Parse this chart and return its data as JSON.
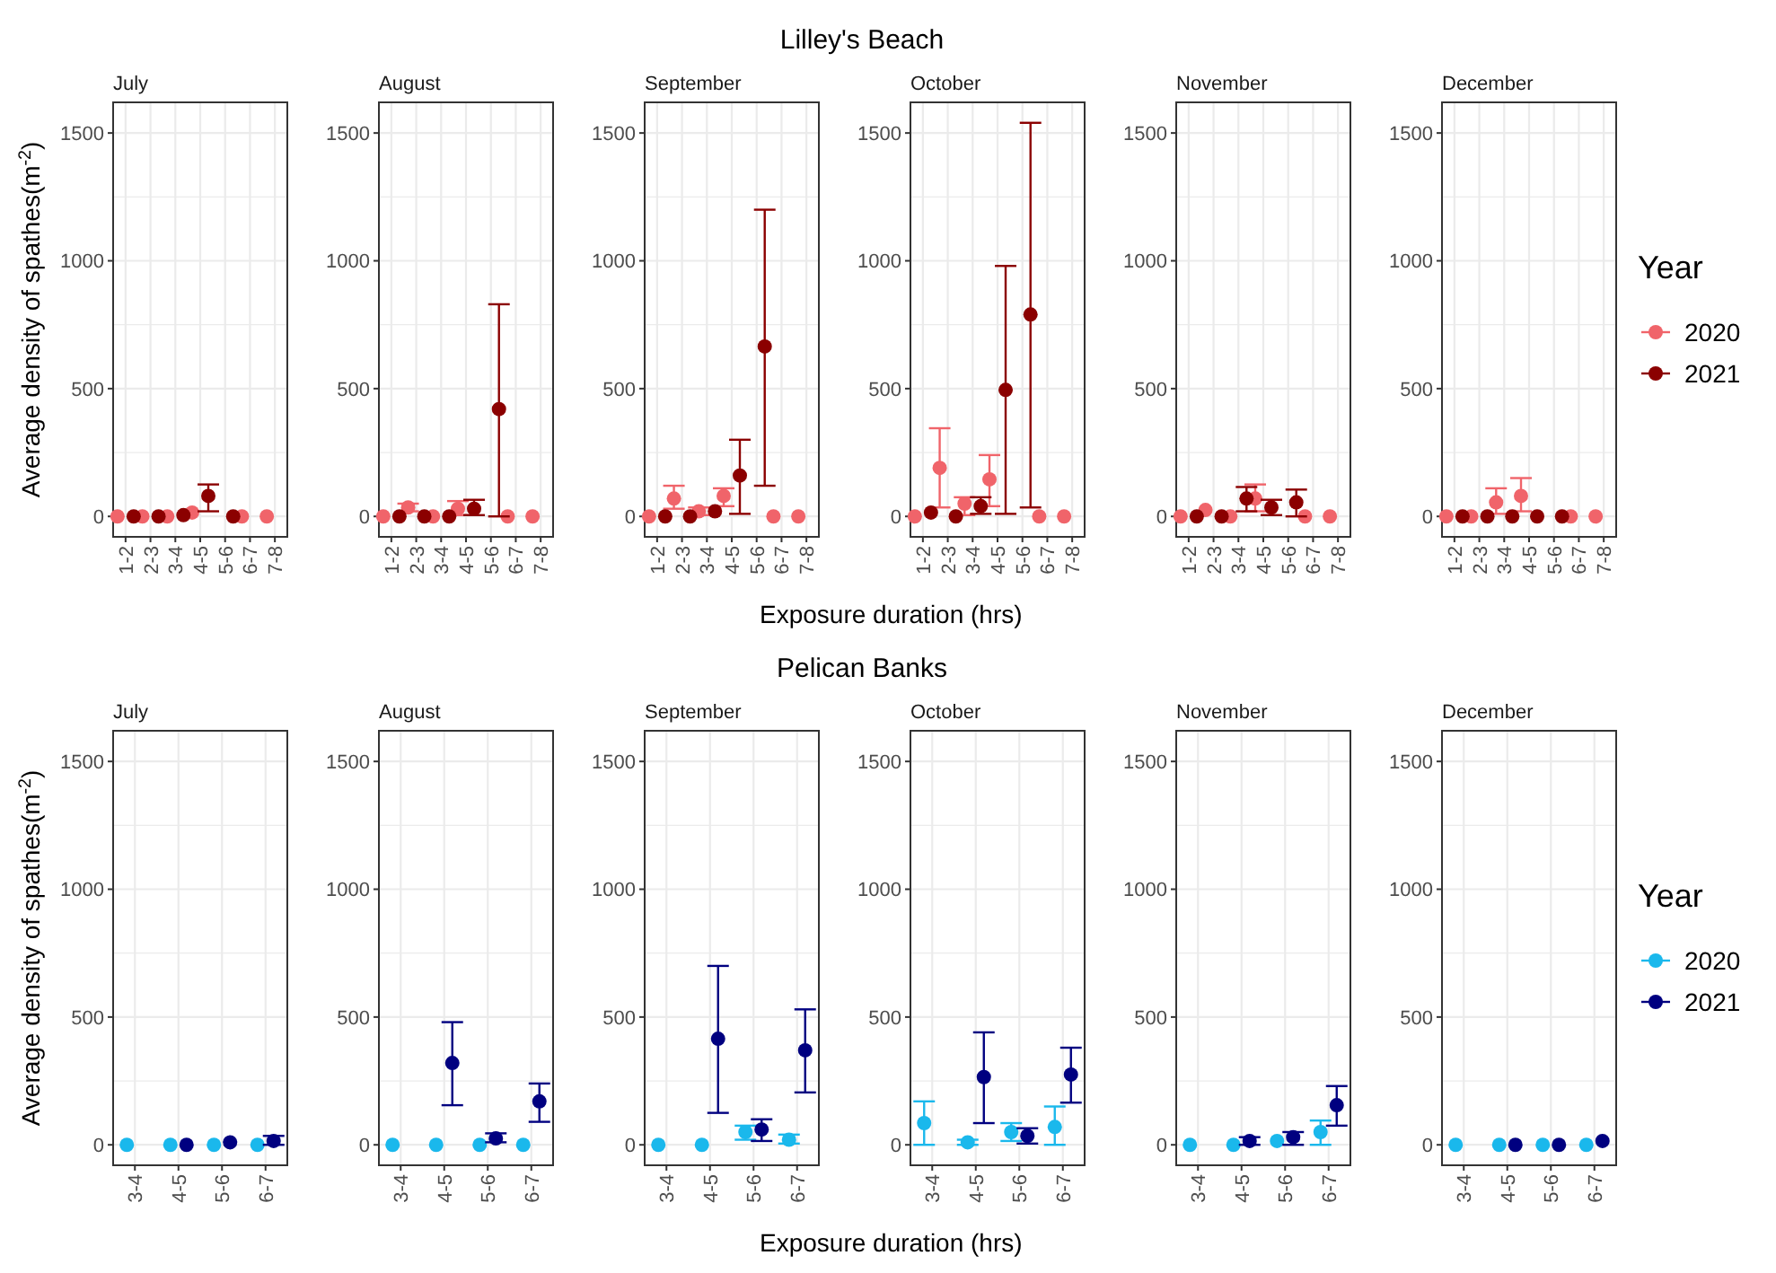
{
  "chart_data": [
    {
      "type": "scatter",
      "title": "July",
      "annotations": [
        "Lilley's Beach"
      ],
      "ylabel": "Average density of spathes(m$^{-2}$)",
      "categories": [
        "1-2",
        "2-3",
        "3-4",
        "4-5",
        "5-6",
        "6-7",
        "7-8"
      ],
      "ylim": [
        -80,
        1620
      ],
      "yticks": [
        0,
        {
          "value": 250,
          "label": null
        },
        500,
        {
          "value": 750,
          "label": null
        },
        1000,
        {
          "value": 1250,
          "label": null
        },
        1500
      ],
      "grid": true,
      "marker": "circle",
      "legend": false,
      "series": [
        {
          "color": "#f0646a",
          "values": [
            0,
            0,
            0,
            15,
            null,
            0,
            0
          ]
        },
        {
          "color": "#8b0000",
          "values": [
            0,
            0,
            5,
            80,
            0,
            null,
            null
          ],
          "errors": [
            null,
            null,
            null,
            [
              20,
              125
            ],
            null,
            null,
            null
          ]
        }
      ]
    },
    {
      "type": "scatter",
      "title": "August",
      "categories": [
        "1-2",
        "2-3",
        "3-4",
        "4-5",
        "5-6",
        "6-7",
        "7-8"
      ],
      "ylim": [
        -80,
        1620
      ],
      "yticks": [
        0,
        {
          "value": 250,
          "label": null
        },
        500,
        {
          "value": 750,
          "label": null
        },
        1000,
        {
          "value": 1250,
          "label": null
        },
        1500
      ],
      "grid": true,
      "marker": "circle",
      "legend": false,
      "series": [
        {
          "color": "#f0646a",
          "values": [
            0,
            35,
            0,
            30,
            null,
            0,
            0
          ],
          "errors": [
            null,
            [
              20,
              50
            ],
            null,
            [
              5,
              60
            ],
            null,
            null,
            null
          ]
        },
        {
          "color": "#8b0000",
          "values": [
            0,
            0,
            0,
            30,
            420,
            null,
            null
          ],
          "errors": [
            null,
            null,
            null,
            [
              5,
              65
            ],
            [
              0,
              830
            ],
            null,
            null
          ]
        }
      ]
    },
    {
      "type": "scatter",
      "title": "September",
      "categories": [
        "1-2",
        "2-3",
        "3-4",
        "4-5",
        "5-6",
        "6-7",
        "7-8"
      ],
      "ylim": [
        -80,
        1620
      ],
      "yticks": [
        0,
        {
          "value": 250,
          "label": null
        },
        500,
        {
          "value": 750,
          "label": null
        },
        1000,
        {
          "value": 1250,
          "label": null
        },
        1500
      ],
      "grid": true,
      "marker": "circle",
      "legend": false,
      "series": [
        {
          "color": "#f0646a",
          "values": [
            0,
            70,
            20,
            80,
            null,
            0,
            0
          ],
          "errors": [
            null,
            [
              30,
              120
            ],
            [
              5,
              35
            ],
            [
              40,
              110
            ],
            null,
            null,
            null
          ]
        },
        {
          "color": "#8b0000",
          "values": [
            0,
            0,
            20,
            160,
            665,
            null,
            null
          ],
          "errors": [
            null,
            null,
            null,
            [
              10,
              300
            ],
            [
              120,
              1200
            ],
            null,
            null
          ]
        }
      ]
    },
    {
      "type": "scatter",
      "title": "October",
      "xlabel": "Exposure duration (hrs)",
      "categories": [
        "1-2",
        "2-3",
        "3-4",
        "4-5",
        "5-6",
        "6-7",
        "7-8"
      ],
      "ylim": [
        -80,
        1620
      ],
      "yticks": [
        0,
        {
          "value": 250,
          "label": null
        },
        500,
        {
          "value": 750,
          "label": null
        },
        1000,
        {
          "value": 1250,
          "label": null
        },
        1500
      ],
      "grid": true,
      "marker": "circle",
      "legend": false,
      "series": [
        {
          "color": "#f0646a",
          "values": [
            0,
            190,
            50,
            145,
            null,
            0,
            0
          ],
          "errors": [
            null,
            [
              35,
              345
            ],
            [
              5,
              75
            ],
            [
              40,
              240
            ],
            null,
            null,
            null
          ]
        },
        {
          "color": "#8b0000",
          "values": [
            15,
            0,
            40,
            495,
            790,
            null,
            null
          ],
          "errors": [
            null,
            null,
            [
              10,
              75
            ],
            [
              10,
              980
            ],
            [
              35,
              1540
            ],
            null,
            null
          ]
        }
      ]
    },
    {
      "type": "scatter",
      "title": "November",
      "categories": [
        "1-2",
        "2-3",
        "3-4",
        "4-5",
        "5-6",
        "6-7",
        "7-8"
      ],
      "ylim": [
        -80,
        1620
      ],
      "yticks": [
        0,
        {
          "value": 250,
          "label": null
        },
        500,
        {
          "value": 750,
          "label": null
        },
        1000,
        {
          "value": 1250,
          "label": null
        },
        1500
      ],
      "grid": true,
      "marker": "circle",
      "legend": false,
      "series": [
        {
          "color": "#f0646a",
          "values": [
            0,
            25,
            0,
            70,
            null,
            0,
            0
          ],
          "errors": [
            null,
            null,
            null,
            [
              20,
              125
            ],
            null,
            null,
            null
          ]
        },
        {
          "color": "#8b0000",
          "values": [
            0,
            0,
            70,
            35,
            55,
            null,
            null
          ],
          "errors": [
            null,
            null,
            [
              20,
              115
            ],
            [
              5,
              65
            ],
            [
              0,
              105
            ],
            null,
            null
          ]
        }
      ]
    },
    {
      "type": "scatter",
      "title": "December",
      "categories": [
        "1-2",
        "2-3",
        "3-4",
        "4-5",
        "5-6",
        "6-7",
        "7-8"
      ],
      "ylim": [
        -80,
        1620
      ],
      "yticks": [
        0,
        {
          "value": 250,
          "label": null
        },
        500,
        {
          "value": 750,
          "label": null
        },
        1000,
        {
          "value": 1250,
          "label": null
        },
        1500
      ],
      "grid": true,
      "marker": "circle",
      "legend": "right",
      "legend_title": "Year",
      "series": [
        {
          "name": "2020",
          "color": "#f0646a",
          "values": [
            0,
            0,
            55,
            80,
            null,
            0,
            0
          ],
          "errors": [
            null,
            null,
            [
              10,
              110
            ],
            [
              20,
              150
            ],
            null,
            null,
            null
          ]
        },
        {
          "name": "2021",
          "color": "#8b0000",
          "values": [
            0,
            0,
            0,
            0,
            0,
            null,
            null
          ]
        }
      ]
    },
    {
      "type": "scatter",
      "title": "July",
      "annotations": [
        "Pelican Banks"
      ],
      "ylabel": "Average density of spathes(m$^{-2}$)",
      "categories": [
        "3-4",
        "4-5",
        "5-6",
        "6-7"
      ],
      "ylim": [
        -80,
        1620
      ],
      "yticks": [
        0,
        {
          "value": 250,
          "label": null
        },
        500,
        {
          "value": 750,
          "label": null
        },
        1000,
        {
          "value": 1250,
          "label": null
        },
        1500
      ],
      "grid": true,
      "marker": "circle",
      "legend": false,
      "series": [
        {
          "color": "#1ab8ec",
          "values": [
            0,
            0,
            0,
            0
          ]
        },
        {
          "color": "#000080",
          "values": [
            null,
            0,
            10,
            15
          ],
          "errors": [
            null,
            null,
            null,
            [
              0,
              35
            ]
          ]
        }
      ]
    },
    {
      "type": "scatter",
      "title": "August",
      "categories": [
        "3-4",
        "4-5",
        "5-6",
        "6-7"
      ],
      "ylim": [
        -80,
        1620
      ],
      "yticks": [
        0,
        {
          "value": 250,
          "label": null
        },
        500,
        {
          "value": 750,
          "label": null
        },
        1000,
        {
          "value": 1250,
          "label": null
        },
        1500
      ],
      "grid": true,
      "marker": "circle",
      "legend": false,
      "series": [
        {
          "color": "#1ab8ec",
          "values": [
            0,
            0,
            0,
            0
          ]
        },
        {
          "color": "#000080",
          "values": [
            null,
            320,
            25,
            170
          ],
          "errors": [
            null,
            [
              155,
              480
            ],
            [
              10,
              45
            ],
            [
              90,
              240
            ]
          ]
        }
      ]
    },
    {
      "type": "scatter",
      "title": "September",
      "categories": [
        "3-4",
        "4-5",
        "5-6",
        "6-7"
      ],
      "ylim": [
        -80,
        1620
      ],
      "yticks": [
        0,
        {
          "value": 250,
          "label": null
        },
        500,
        {
          "value": 750,
          "label": null
        },
        1000,
        {
          "value": 1250,
          "label": null
        },
        1500
      ],
      "grid": true,
      "marker": "circle",
      "legend": false,
      "series": [
        {
          "color": "#1ab8ec",
          "values": [
            0,
            0,
            50,
            20
          ],
          "errors": [
            null,
            null,
            [
              20,
              75
            ],
            [
              5,
              40
            ]
          ]
        },
        {
          "color": "#000080",
          "values": [
            null,
            415,
            60,
            370
          ],
          "errors": [
            null,
            [
              125,
              700
            ],
            [
              15,
              100
            ],
            [
              205,
              530
            ]
          ]
        }
      ]
    },
    {
      "type": "scatter",
      "title": "October",
      "xlabel": "Exposure duration (hrs)",
      "categories": [
        "3-4",
        "4-5",
        "5-6",
        "6-7"
      ],
      "ylim": [
        -80,
        1620
      ],
      "yticks": [
        0,
        {
          "value": 250,
          "label": null
        },
        500,
        {
          "value": 750,
          "label": null
        },
        1000,
        {
          "value": 1250,
          "label": null
        },
        1500
      ],
      "grid": true,
      "marker": "circle",
      "legend": false,
      "series": [
        {
          "color": "#1ab8ec",
          "values": [
            85,
            10,
            50,
            70
          ],
          "errors": [
            [
              0,
              170
            ],
            [
              0,
              20
            ],
            [
              15,
              85
            ],
            [
              0,
              150
            ]
          ]
        },
        {
          "color": "#000080",
          "values": [
            null,
            265,
            35,
            275
          ],
          "errors": [
            null,
            [
              85,
              440
            ],
            [
              5,
              65
            ],
            [
              165,
              380
            ]
          ]
        }
      ]
    },
    {
      "type": "scatter",
      "title": "November",
      "categories": [
        "3-4",
        "4-5",
        "5-6",
        "6-7"
      ],
      "ylim": [
        -80,
        1620
      ],
      "yticks": [
        0,
        {
          "value": 250,
          "label": null
        },
        500,
        {
          "value": 750,
          "label": null
        },
        1000,
        {
          "value": 1250,
          "label": null
        },
        1500
      ],
      "grid": true,
      "marker": "circle",
      "legend": false,
      "series": [
        {
          "color": "#1ab8ec",
          "values": [
            0,
            0,
            15,
            50
          ],
          "errors": [
            null,
            null,
            null,
            [
              0,
              95
            ]
          ]
        },
        {
          "color": "#000080",
          "values": [
            null,
            15,
            30,
            155
          ],
          "errors": [
            null,
            [
              0,
              30
            ],
            [
              0,
              50
            ],
            [
              75,
              230
            ]
          ]
        }
      ]
    },
    {
      "type": "scatter",
      "title": "December",
      "categories": [
        "3-4",
        "4-5",
        "5-6",
        "6-7"
      ],
      "ylim": [
        -80,
        1620
      ],
      "yticks": [
        0,
        {
          "value": 250,
          "label": null
        },
        500,
        {
          "value": 750,
          "label": null
        },
        1000,
        {
          "value": 1250,
          "label": null
        },
        1500
      ],
      "grid": true,
      "marker": "circle",
      "legend": "right",
      "legend_title": "Year",
      "series": [
        {
          "name": "2020",
          "color": "#1ab8ec",
          "values": [
            0,
            0,
            0,
            0
          ]
        },
        {
          "name": "2021",
          "color": "#000080",
          "values": [
            null,
            0,
            0,
            15
          ]
        }
      ]
    }
  ]
}
